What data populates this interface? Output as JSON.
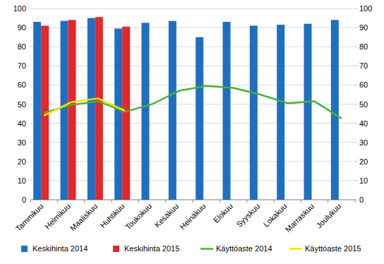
{
  "chart_data": {
    "type": "bar",
    "categories": [
      "Tammikuu",
      "Helmikuu",
      "Maaliskuu",
      "Huhtikuu",
      "Toukokuu",
      "Kesäkuu",
      "Heinäkuu",
      "Elokuu",
      "Syyskuu",
      "Lokakuu",
      "Marraskuu",
      "Joulukuu"
    ],
    "series": [
      {
        "name": "Keskihinta 2014",
        "type": "bar",
        "color": "#1f6fc1",
        "values": [
          93,
          93.5,
          95,
          89.5,
          92.5,
          93.5,
          85,
          93,
          91,
          91.5,
          92,
          94
        ]
      },
      {
        "name": "Keskihinta 2015",
        "type": "bar",
        "color": "#e5262a",
        "values": [
          91,
          94,
          95.5,
          90.5,
          null,
          null,
          null,
          null,
          null,
          null,
          null,
          null
        ]
      },
      {
        "name": "Käyttöaste 2014",
        "type": "line",
        "axis": "y2",
        "color": "#4caf3a",
        "values": [
          45.5,
          49.5,
          51.5,
          46,
          50,
          57,
          59.5,
          58.5,
          55,
          50.5,
          51.5,
          42.5
        ]
      },
      {
        "name": "Käyttöaste 2015",
        "type": "line",
        "axis": "y2",
        "color": "#ffe000",
        "values": [
          44,
          51,
          53,
          46.5,
          null,
          null,
          null,
          null,
          null,
          null,
          null,
          null
        ]
      }
    ],
    "ylim": [
      0,
      100
    ],
    "yticks": [
      0,
      10,
      20,
      30,
      40,
      50,
      60,
      70,
      80,
      90,
      100
    ],
    "y2lim": [
      0,
      100
    ],
    "y2ticks": [
      0,
      10,
      20,
      30,
      40,
      50,
      60,
      70,
      80,
      90,
      100
    ],
    "grid": true,
    "legend": "bottom"
  }
}
